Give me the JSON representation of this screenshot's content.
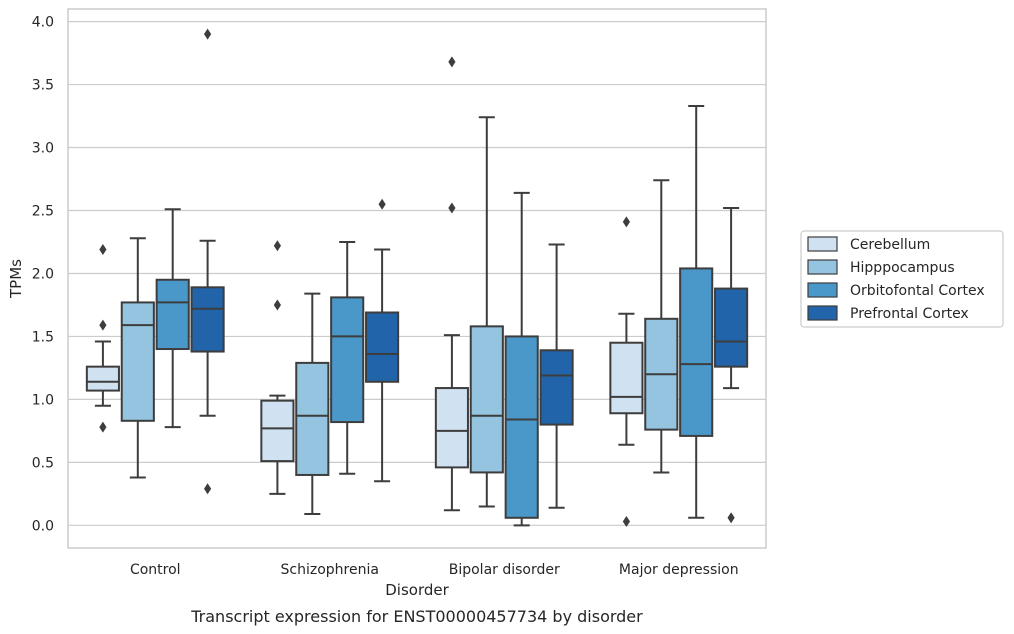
{
  "chart_data": {
    "type": "boxplot",
    "title": "",
    "caption": "Transcript expression for ENST00000457734 by disorder",
    "xlabel": "Disorder",
    "ylabel": "TPMs",
    "ylim": [
      -0.18,
      4.1
    ],
    "yticks": [
      0.0,
      0.5,
      1.0,
      1.5,
      2.0,
      2.5,
      3.0,
      3.5,
      4.0
    ],
    "ytick_labels": [
      "0.0",
      "0.5",
      "1.0",
      "1.5",
      "2.0",
      "2.5",
      "3.0",
      "3.5",
      "4.0"
    ],
    "grid": "horizontal",
    "legend_position": "right",
    "categories": [
      "Control",
      "Schizophrenia",
      "Bipolar disorder",
      "Major depression"
    ],
    "series": [
      {
        "name": "Cerebellum",
        "color": "#d0e1f2",
        "boxes": [
          {
            "whislo": 0.95,
            "q1": 1.07,
            "med": 1.14,
            "q3": 1.26,
            "whishi": 1.46,
            "fliers": [
              2.19,
              1.59,
              0.78
            ]
          },
          {
            "whislo": 0.25,
            "q1": 0.51,
            "med": 0.77,
            "q3": 0.99,
            "whishi": 1.03,
            "fliers": [
              2.22,
              1.75
            ]
          },
          {
            "whislo": 0.12,
            "q1": 0.46,
            "med": 0.75,
            "q3": 1.09,
            "whishi": 1.51,
            "fliers": [
              3.68,
              2.52
            ]
          },
          {
            "whislo": 0.64,
            "q1": 0.89,
            "med": 1.02,
            "q3": 1.45,
            "whishi": 1.68,
            "fliers": [
              2.41,
              0.03
            ]
          }
        ]
      },
      {
        "name": "Hipppocampus",
        "color": "#94c4df",
        "boxes": [
          {
            "whislo": 0.38,
            "q1": 0.83,
            "med": 1.59,
            "q3": 1.77,
            "whishi": 2.28,
            "fliers": []
          },
          {
            "whislo": 0.09,
            "q1": 0.4,
            "med": 0.87,
            "q3": 1.29,
            "whishi": 1.84,
            "fliers": []
          },
          {
            "whislo": 0.15,
            "q1": 0.42,
            "med": 0.87,
            "q3": 1.58,
            "whishi": 3.24,
            "fliers": []
          },
          {
            "whislo": 0.42,
            "q1": 0.76,
            "med": 1.2,
            "q3": 1.64,
            "whishi": 2.74,
            "fliers": []
          }
        ]
      },
      {
        "name": "Orbitofontal Cortex",
        "color": "#4a98c9",
        "boxes": [
          {
            "whislo": 0.78,
            "q1": 1.4,
            "med": 1.77,
            "q3": 1.95,
            "whishi": 2.51,
            "fliers": []
          },
          {
            "whislo": 0.41,
            "q1": 0.82,
            "med": 1.5,
            "q3": 1.81,
            "whishi": 2.25,
            "fliers": []
          },
          {
            "whislo": 0.0,
            "q1": 0.06,
            "med": 0.84,
            "q3": 1.5,
            "whishi": 2.64,
            "fliers": []
          },
          {
            "whislo": 0.06,
            "q1": 0.71,
            "med": 1.28,
            "q3": 2.04,
            "whishi": 3.33,
            "fliers": []
          }
        ]
      },
      {
        "name": "Prefrontal Cortex",
        "color": "#2264aa",
        "boxes": [
          {
            "whislo": 0.87,
            "q1": 1.38,
            "med": 1.72,
            "q3": 1.89,
            "whishi": 2.26,
            "fliers": [
              3.9,
              0.29
            ]
          },
          {
            "whislo": 0.35,
            "q1": 1.14,
            "med": 1.36,
            "q3": 1.69,
            "whishi": 2.19,
            "fliers": [
              2.55
            ]
          },
          {
            "whislo": 0.14,
            "q1": 0.8,
            "med": 1.19,
            "q3": 1.39,
            "whishi": 2.23,
            "fliers": []
          },
          {
            "whislo": 1.09,
            "q1": 1.26,
            "med": 1.46,
            "q3": 1.88,
            "whishi": 2.52,
            "fliers": [
              0.06
            ]
          }
        ]
      }
    ]
  },
  "colors": {
    "grid": "#cccccc",
    "axes_edge": "#cccccc",
    "box_edge": "#3d3d3d",
    "text": "#262626"
  }
}
